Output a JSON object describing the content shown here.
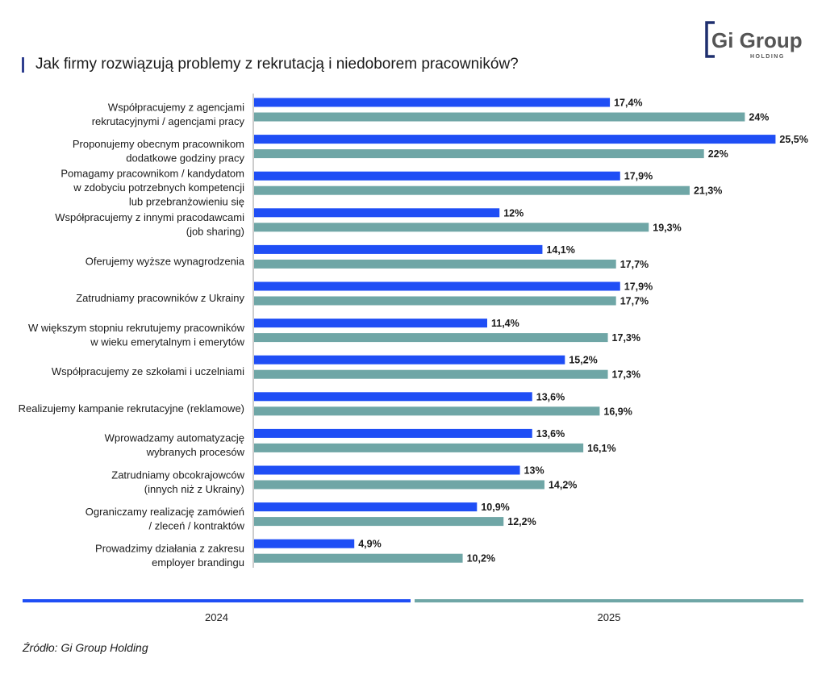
{
  "title": "Jak firmy rozwiązują problemy z rekrutacją i niedoborem pracowników?",
  "logo": {
    "text": "Gi Group",
    "subtext": "HOLDING"
  },
  "source": "Źródło: Gi Group Holding",
  "colors": {
    "2024": "#1f4ef5",
    "2025": "#6fa6a6",
    "axis": "#9a9a9a",
    "title_accent": "#2f3f8f"
  },
  "chart_data": {
    "type": "bar",
    "orientation": "horizontal",
    "title": "Jak firmy rozwiązują problemy z rekrutacją i niedoborem pracowników?",
    "unit": "%",
    "categories": [
      [
        "Współpracujemy z agencjami",
        "rekrutacyjnymi / agencjami pracy"
      ],
      [
        "Proponujemy obecnym pracownikom",
        "dodatkowe godziny pracy"
      ],
      [
        "Pomagamy pracownikom / kandydatom",
        "w zdobyciu potrzebnych kompetencji",
        "lub przebranżowieniu się"
      ],
      [
        "Współpracujemy z innymi pracodawcami",
        "(job sharing)"
      ],
      [
        "Oferujemy wyższe wynagrodzenia"
      ],
      [
        "Zatrudniamy pracowników z Ukrainy"
      ],
      [
        "W większym stopniu rekrutujemy pracowników",
        "w wieku emerytalnym i emerytów"
      ],
      [
        "Współpracujemy ze szkołami i uczelniami"
      ],
      [
        "Realizujemy kampanie rekrutacyjne (reklamowe)"
      ],
      [
        "Wprowadzamy automatyzację",
        "wybranych procesów"
      ],
      [
        "Zatrudniamy obcokrajowców",
        "(innych niż z Ukrainy)"
      ],
      [
        "Ograniczamy realizację zamówień",
        "/ zleceń / kontraktów"
      ],
      [
        "Prowadzimy działania z zakresu",
        "employer brandingu"
      ]
    ],
    "series": [
      {
        "name": "2024",
        "values": [
          17.4,
          25.5,
          17.9,
          12,
          14.1,
          17.9,
          11.4,
          15.2,
          13.6,
          13.6,
          13,
          10.9,
          4.9
        ],
        "labels": [
          "17,4%",
          "25,5%",
          "17,9%",
          "12%",
          "14,1%",
          "17,9%",
          "11,4%",
          "15,2%",
          "13,6%",
          "13,6%",
          "13%",
          "10,9%",
          "4,9%"
        ]
      },
      {
        "name": "2025",
        "values": [
          24,
          22,
          21.3,
          19.3,
          17.7,
          17.7,
          17.3,
          17.3,
          16.9,
          16.1,
          14.2,
          12.2,
          10.2
        ],
        "labels": [
          "24%",
          "22%",
          "21,3%",
          "19,3%",
          "17,7%",
          "17,7%",
          "17,3%",
          "17,3%",
          "16,9%",
          "16,1%",
          "14,2%",
          "12,2%",
          "10,2%"
        ]
      }
    ],
    "xlim": [
      0,
      25.5
    ],
    "legend": "bottom",
    "grid": false
  }
}
